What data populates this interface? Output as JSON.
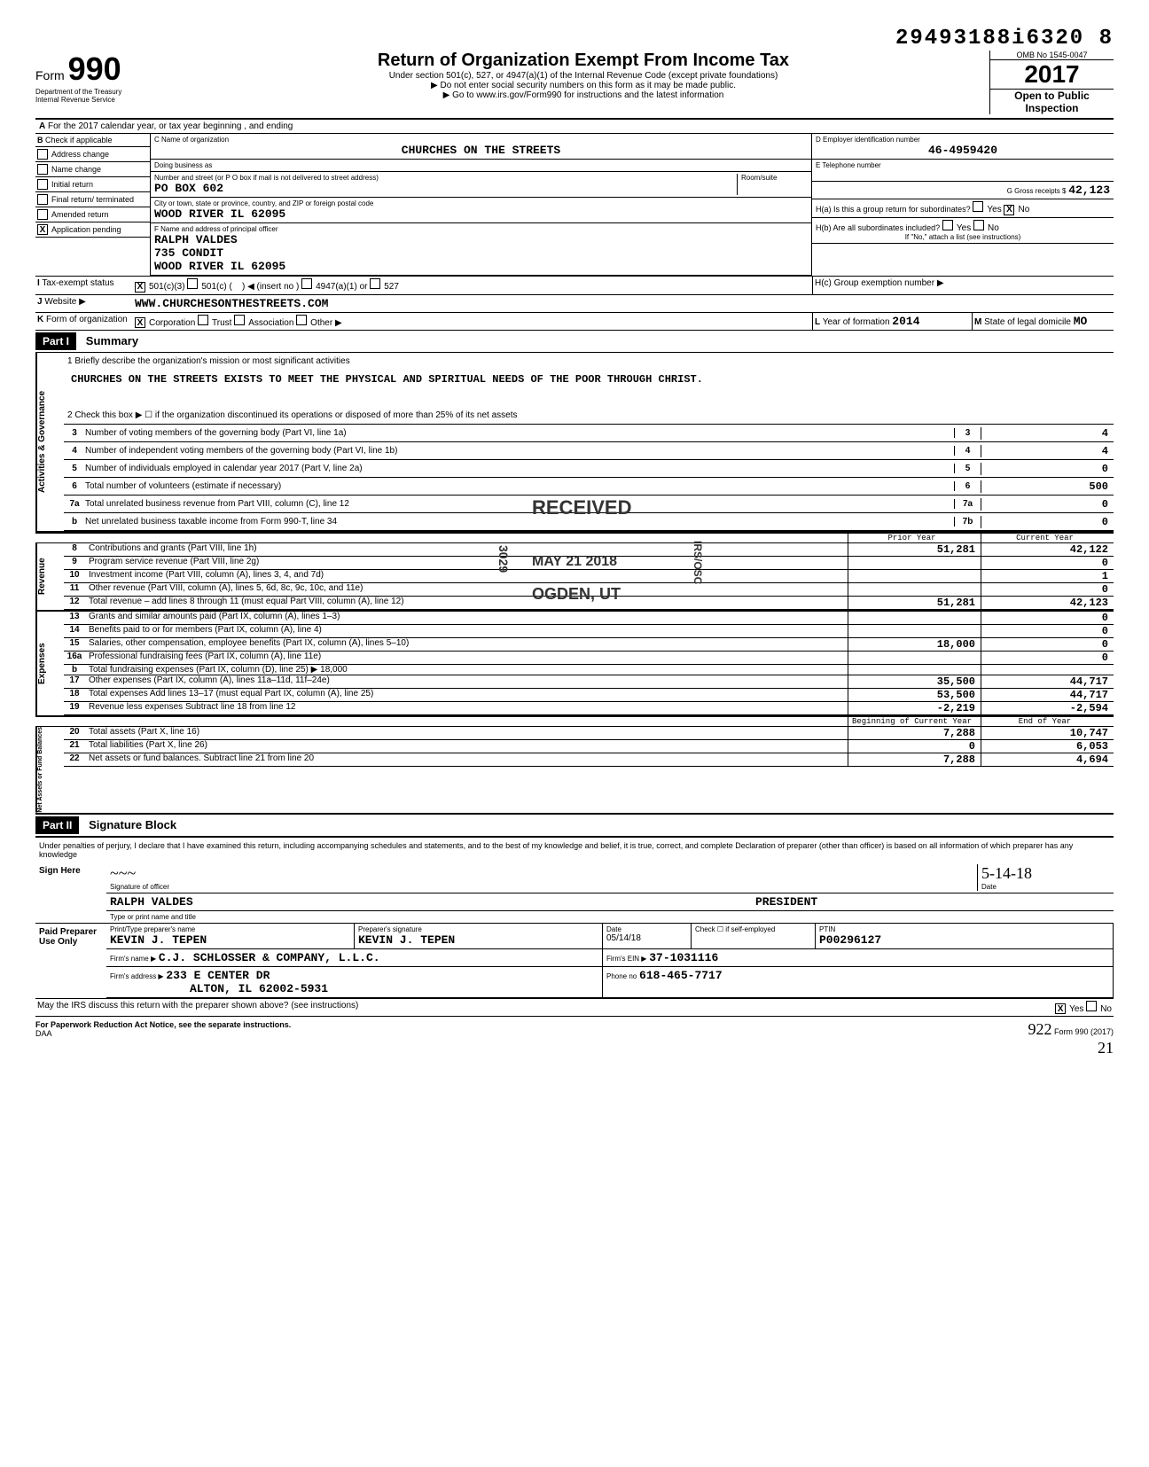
{
  "doc_id": "29493188i6320 8",
  "header": {
    "form_word": "Form",
    "form_number": "990",
    "dept": "Department of the Treasury",
    "irs": "Internal Revenue Service",
    "title": "Return of Organization Exempt From Income Tax",
    "subtitle": "Under section 501(c), 527, or 4947(a)(1) of the Internal Revenue Code (except private foundations)",
    "note1": "▶ Do not enter social security numbers on this form as it may be made public.",
    "note2": "▶ Go to www.irs.gov/Form990 for instructions and the latest information",
    "omb": "OMB No 1545-0047",
    "year": "2017",
    "open": "Open to Public",
    "inspection": "Inspection"
  },
  "line_a": "For the 2017 calendar year, or tax year beginning                     , and ending",
  "b": {
    "label": "Check if applicable",
    "items": [
      "Address change",
      "Name change",
      "Initial return",
      "Final return/ terminated",
      "Amended return",
      "Application pending"
    ],
    "checked_idx": 5
  },
  "c": {
    "label_name": "C  Name of organization",
    "org_name": "CHURCHES ON THE STREETS",
    "dba_label": "Doing business as",
    "addr_label": "Number and street (or P O  box if mail is not delivered to street address)",
    "addr": "PO BOX 602",
    "room_label": "Room/suite",
    "city_label": "City or town, state or province, country, and ZIP or foreign postal code",
    "city": "WOOD RIVER              IL 62095"
  },
  "d": {
    "label": "D Employer identification number",
    "val": "46-4959420"
  },
  "e": {
    "label": "E Telephone number",
    "val": ""
  },
  "f": {
    "label": "F  Name and address of principal officer",
    "name": "RALPH VALDES",
    "addr1": "735 CONDIT",
    "addr2": "WOOD RIVER            IL 62095"
  },
  "g": {
    "label": "G Gross receipts $",
    "val": "42,123"
  },
  "h": {
    "a_label": "H(a) Is this a group return for subordinates?",
    "a_no": "X",
    "b_label": "H(b) Are all subordinates included?",
    "b_note": "If \"No,\" attach a list (see instructions)",
    "c_label": "H(c) Group exemption number ▶"
  },
  "i": {
    "label": "Tax-exempt status",
    "c3": "X",
    "options": [
      "501(c)(3)",
      "501(c)",
      "◀ (insert no )",
      "4947(a)(1) or",
      "527"
    ]
  },
  "j": {
    "label": "Website ▶",
    "val": "WWW.CHURCHESONTHESTREETS.COM"
  },
  "k": {
    "label": "Form of organization",
    "corp": "X",
    "options": [
      "Corporation",
      "Trust",
      "Association",
      "Other ▶"
    ]
  },
  "l": {
    "label": "Year of formation",
    "val": "2014"
  },
  "m": {
    "label": "State of legal domicile",
    "val": "MO"
  },
  "part1": {
    "hdr": "Part I",
    "title": "Summary",
    "q1_label": "1  Briefly describe the organization's mission or most significant activities",
    "q1_val": "CHURCHES ON THE STREETS EXISTS TO MEET THE PHYSICAL AND SPIRITUAL NEEDS OF THE POOR THROUGH CHRIST.",
    "q2": "2  Check this box ▶ ☐  if the organization discontinued its operations or disposed of more than 25% of its net assets",
    "rows_single": [
      {
        "n": "3",
        "t": "Number of voting members of the governing body (Part VI, line 1a)",
        "b": "3",
        "v": "4"
      },
      {
        "n": "4",
        "t": "Number of independent voting members of the governing body (Part VI, line 1b)",
        "b": "4",
        "v": "4"
      },
      {
        "n": "5",
        "t": "Number of individuals employed in calendar year 2017 (Part V, line 2a)",
        "b": "5",
        "v": "0"
      },
      {
        "n": "6",
        "t": "Total number of volunteers (estimate if necessary)",
        "b": "6",
        "v": "500"
      },
      {
        "n": "7a",
        "t": "Total unrelated business revenue from Part VIII, column (C), line 12",
        "b": "7a",
        "v": "0"
      },
      {
        "n": "b",
        "t": "Net unrelated business taxable income from Form 990-T, line 34",
        "b": "7b",
        "v": "0"
      }
    ],
    "col_prior_hdr": "Prior Year",
    "col_curr_hdr": "Current Year",
    "revenue_rows": [
      {
        "n": "8",
        "t": "Contributions and grants (Part VIII, line 1h)",
        "p": "51,281",
        "c": "42,122"
      },
      {
        "n": "9",
        "t": "Program service revenue (Part VIII, line 2g)",
        "p": "",
        "c": "0"
      },
      {
        "n": "10",
        "t": "Investment income (Part VIII, column (A), lines 3, 4, and 7d)",
        "p": "",
        "c": "1"
      },
      {
        "n": "11",
        "t": "Other revenue (Part VIII, column (A), lines 5, 6d, 8c, 9c, 10c, and 11e)",
        "p": "",
        "c": "0"
      },
      {
        "n": "12",
        "t": "Total revenue – add lines 8 through 11 (must equal Part VIII, column (A), line 12)",
        "p": "51,281",
        "c": "42,123"
      }
    ],
    "expense_rows": [
      {
        "n": "13",
        "t": "Grants and similar amounts paid (Part IX, column (A), lines 1–3)",
        "p": "",
        "c": "0"
      },
      {
        "n": "14",
        "t": "Benefits paid to or for members (Part IX, column (A), line 4)",
        "p": "",
        "c": "0"
      },
      {
        "n": "15",
        "t": "Salaries, other compensation, employee benefits (Part IX, column (A), lines 5–10)",
        "p": "18,000",
        "c": "0"
      },
      {
        "n": "16a",
        "t": "Professional fundraising fees (Part IX, column (A), line 11e)",
        "p": "",
        "c": "0"
      },
      {
        "n": "b",
        "t": "Total fundraising expenses (Part IX, column (D), line 25) ▶            18,000",
        "p": "",
        "c": ""
      },
      {
        "n": "17",
        "t": "Other expenses (Part IX, column (A), lines 11a–11d, 11f–24e)",
        "p": "35,500",
        "c": "44,717"
      },
      {
        "n": "18",
        "t": "Total expenses Add lines 13–17 (must equal Part IX, column (A), line 25)",
        "p": "53,500",
        "c": "44,717"
      },
      {
        "n": "19",
        "t": "Revenue less expenses Subtract line 18 from line 12",
        "p": "-2,219",
        "c": "-2,594"
      }
    ],
    "col_beg_hdr": "Beginning of Current Year",
    "col_end_hdr": "End of Year",
    "net_rows": [
      {
        "n": "20",
        "t": "Total assets (Part X, line 16)",
        "p": "7,288",
        "c": "10,747"
      },
      {
        "n": "21",
        "t": "Total liabilities (Part X, line 26)",
        "p": "0",
        "c": "6,053"
      },
      {
        "n": "22",
        "t": "Net assets or fund balances. Subtract line 21 from line 20",
        "p": "7,288",
        "c": "4,694"
      }
    ],
    "vert_gov": "Activities & Governance",
    "vert_rev": "Revenue",
    "vert_exp": "Expenses",
    "vert_net": "Net Assets or Fund Balances"
  },
  "part2": {
    "hdr": "Part II",
    "title": "Signature Block",
    "decl": "Under penalties of perjury, I declare that I have examined this return, including accompanying schedules and statements, and to the best of my knowledge and belief, it is true, correct, and complete Declaration of preparer (other than officer) is based on all information of which preparer has any knowledge",
    "sign": "Sign Here",
    "sig_of_officer": "Signature of officer",
    "date_lbl": "Date",
    "date_val": "5-14-18",
    "officer_name": "RALPH VALDES",
    "officer_title": "PRESIDENT",
    "type_name_lbl": "Type or print name and title",
    "paid": "Paid Preparer Use Only",
    "prep_name_lbl": "Print/Type preparer's name",
    "prep_name": "KEVIN J. TEPEN",
    "prep_sig_lbl": "Preparer's signature",
    "prep_sig": "KEVIN J. TEPEN",
    "prep_date": "05/14/18",
    "check_lbl": "Check ☐ if self-employed",
    "ptin_lbl": "PTIN",
    "ptin": "P00296127",
    "firm_name_lbl": "Firm's name ▶",
    "firm_name": "C.J. SCHLOSSER & COMPANY, L.L.C.",
    "firm_ein_lbl": "Firm's EIN ▶",
    "firm_ein": "37-1031116",
    "firm_addr_lbl": "Firm's address ▶",
    "firm_addr": "233 E CENTER DR",
    "firm_city": "ALTON, IL    62002-5931",
    "phone_lbl": "Phone no",
    "phone": "618-465-7717",
    "discuss": "May the IRS discuss this return with the preparer shown above? (see instructions)",
    "yes_x": "X",
    "paperwork": "For Paperwork Reduction Act Notice, see the separate instructions.",
    "daa": "DAA",
    "form_bottom": "Form 990 (2017)",
    "hw1": "922",
    "hw2": "21"
  },
  "stamps": {
    "received": "RECEIVED",
    "date": "MAY 21 2018",
    "ogden": "OGDEN, UT",
    "side1": "3029",
    "side2": "IRS/OSC"
  }
}
